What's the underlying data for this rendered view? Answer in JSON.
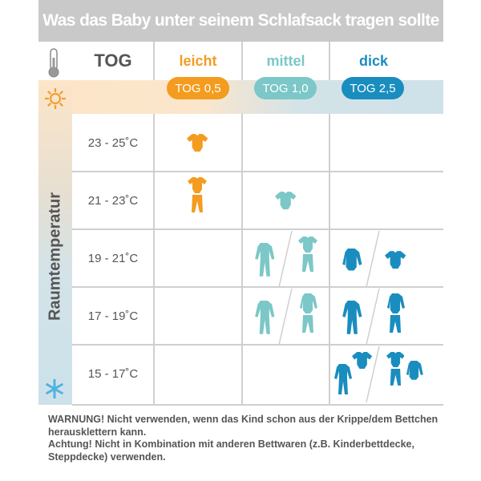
{
  "title": "Was das Baby unter seinem Schlafsack tragen sollte",
  "header": {
    "tog_label": "TOG",
    "columns": [
      {
        "label": "leicht",
        "tog": "TOG 0,5",
        "color": "#f39c1f"
      },
      {
        "label": "mittel",
        "tog": "TOG 1,0",
        "color": "#7cc7c7"
      },
      {
        "label": "dick",
        "tog": "TOG 2,5",
        "color": "#1a8dbf"
      }
    ]
  },
  "axis_label": "Raumtemperatur",
  "icons": {
    "header": "thermometer-icon",
    "top": "sun-icon",
    "bottom": "snowflake-icon"
  },
  "rows": [
    {
      "temp": "23 - 25˚C",
      "cells": [
        [
          [
            "bodysuit"
          ]
        ],
        [],
        []
      ]
    },
    {
      "temp": "21 - 23˚C",
      "cells": [
        [
          [
            "bodysuit",
            "pants"
          ]
        ],
        [
          [
            "bodysuit"
          ]
        ],
        []
      ]
    },
    {
      "temp": "19 - 21˚C",
      "cells": [
        [],
        [
          [
            "sleepsuit"
          ],
          [
            "bodysuit",
            "pants"
          ]
        ],
        [
          [
            "longsleeve"
          ],
          [
            "bodysuit"
          ]
        ]
      ]
    },
    {
      "temp": "17 - 19˚C",
      "cells": [
        [],
        [
          [
            "sleepsuit"
          ],
          [
            "longsleeve",
            "pants"
          ]
        ],
        [
          [
            "sleepsuit"
          ],
          [
            "longsleeve",
            "pants"
          ]
        ]
      ]
    },
    {
      "temp": "15 - 17˚C",
      "cells": [
        [],
        [],
        [
          [
            "sleepsuit",
            "bodysuit"
          ],
          [
            "bodysuit",
            "pants",
            "longsleeve"
          ]
        ]
      ]
    }
  ],
  "notes": [
    "WARNUNG! Nicht verwenden, wenn das Kind schon aus der Krippe/dem Bettchen herausklettern kann.",
    "Achtung! Nicht in Kombination mit anderen Bettwaren (z.B. Kinderbettdecke, Steppdecke) verwenden."
  ]
}
